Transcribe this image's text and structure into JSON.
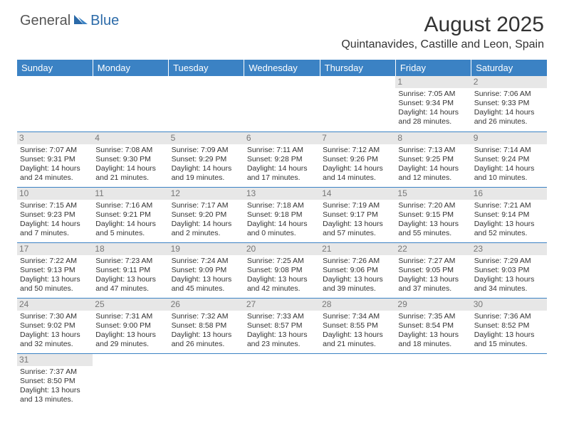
{
  "logo": {
    "general": "General",
    "blue": "Blue"
  },
  "title": "August 2025",
  "location": "Quintanavides, Castille and Leon, Spain",
  "colors": {
    "header_bg": "#3b82c4",
    "header_text": "#ffffff",
    "daynum_bg": "#e7e7e7",
    "daynum_text": "#777777",
    "border": "#3b82c4",
    "logo_accent": "#2b6aa8"
  },
  "day_headers": [
    "Sunday",
    "Monday",
    "Tuesday",
    "Wednesday",
    "Thursday",
    "Friday",
    "Saturday"
  ],
  "weeks": [
    [
      null,
      null,
      null,
      null,
      null,
      {
        "n": "1",
        "sr": "Sunrise: 7:05 AM",
        "ss": "Sunset: 9:34 PM",
        "d1": "Daylight: 14 hours",
        "d2": "and 28 minutes."
      },
      {
        "n": "2",
        "sr": "Sunrise: 7:06 AM",
        "ss": "Sunset: 9:33 PM",
        "d1": "Daylight: 14 hours",
        "d2": "and 26 minutes."
      }
    ],
    [
      {
        "n": "3",
        "sr": "Sunrise: 7:07 AM",
        "ss": "Sunset: 9:31 PM",
        "d1": "Daylight: 14 hours",
        "d2": "and 24 minutes."
      },
      {
        "n": "4",
        "sr": "Sunrise: 7:08 AM",
        "ss": "Sunset: 9:30 PM",
        "d1": "Daylight: 14 hours",
        "d2": "and 21 minutes."
      },
      {
        "n": "5",
        "sr": "Sunrise: 7:09 AM",
        "ss": "Sunset: 9:29 PM",
        "d1": "Daylight: 14 hours",
        "d2": "and 19 minutes."
      },
      {
        "n": "6",
        "sr": "Sunrise: 7:11 AM",
        "ss": "Sunset: 9:28 PM",
        "d1": "Daylight: 14 hours",
        "d2": "and 17 minutes."
      },
      {
        "n": "7",
        "sr": "Sunrise: 7:12 AM",
        "ss": "Sunset: 9:26 PM",
        "d1": "Daylight: 14 hours",
        "d2": "and 14 minutes."
      },
      {
        "n": "8",
        "sr": "Sunrise: 7:13 AM",
        "ss": "Sunset: 9:25 PM",
        "d1": "Daylight: 14 hours",
        "d2": "and 12 minutes."
      },
      {
        "n": "9",
        "sr": "Sunrise: 7:14 AM",
        "ss": "Sunset: 9:24 PM",
        "d1": "Daylight: 14 hours",
        "d2": "and 10 minutes."
      }
    ],
    [
      {
        "n": "10",
        "sr": "Sunrise: 7:15 AM",
        "ss": "Sunset: 9:23 PM",
        "d1": "Daylight: 14 hours",
        "d2": "and 7 minutes."
      },
      {
        "n": "11",
        "sr": "Sunrise: 7:16 AM",
        "ss": "Sunset: 9:21 PM",
        "d1": "Daylight: 14 hours",
        "d2": "and 5 minutes."
      },
      {
        "n": "12",
        "sr": "Sunrise: 7:17 AM",
        "ss": "Sunset: 9:20 PM",
        "d1": "Daylight: 14 hours",
        "d2": "and 2 minutes."
      },
      {
        "n": "13",
        "sr": "Sunrise: 7:18 AM",
        "ss": "Sunset: 9:18 PM",
        "d1": "Daylight: 14 hours",
        "d2": "and 0 minutes."
      },
      {
        "n": "14",
        "sr": "Sunrise: 7:19 AM",
        "ss": "Sunset: 9:17 PM",
        "d1": "Daylight: 13 hours",
        "d2": "and 57 minutes."
      },
      {
        "n": "15",
        "sr": "Sunrise: 7:20 AM",
        "ss": "Sunset: 9:15 PM",
        "d1": "Daylight: 13 hours",
        "d2": "and 55 minutes."
      },
      {
        "n": "16",
        "sr": "Sunrise: 7:21 AM",
        "ss": "Sunset: 9:14 PM",
        "d1": "Daylight: 13 hours",
        "d2": "and 52 minutes."
      }
    ],
    [
      {
        "n": "17",
        "sr": "Sunrise: 7:22 AM",
        "ss": "Sunset: 9:13 PM",
        "d1": "Daylight: 13 hours",
        "d2": "and 50 minutes."
      },
      {
        "n": "18",
        "sr": "Sunrise: 7:23 AM",
        "ss": "Sunset: 9:11 PM",
        "d1": "Daylight: 13 hours",
        "d2": "and 47 minutes."
      },
      {
        "n": "19",
        "sr": "Sunrise: 7:24 AM",
        "ss": "Sunset: 9:09 PM",
        "d1": "Daylight: 13 hours",
        "d2": "and 45 minutes."
      },
      {
        "n": "20",
        "sr": "Sunrise: 7:25 AM",
        "ss": "Sunset: 9:08 PM",
        "d1": "Daylight: 13 hours",
        "d2": "and 42 minutes."
      },
      {
        "n": "21",
        "sr": "Sunrise: 7:26 AM",
        "ss": "Sunset: 9:06 PM",
        "d1": "Daylight: 13 hours",
        "d2": "and 39 minutes."
      },
      {
        "n": "22",
        "sr": "Sunrise: 7:27 AM",
        "ss": "Sunset: 9:05 PM",
        "d1": "Daylight: 13 hours",
        "d2": "and 37 minutes."
      },
      {
        "n": "23",
        "sr": "Sunrise: 7:29 AM",
        "ss": "Sunset: 9:03 PM",
        "d1": "Daylight: 13 hours",
        "d2": "and 34 minutes."
      }
    ],
    [
      {
        "n": "24",
        "sr": "Sunrise: 7:30 AM",
        "ss": "Sunset: 9:02 PM",
        "d1": "Daylight: 13 hours",
        "d2": "and 32 minutes."
      },
      {
        "n": "25",
        "sr": "Sunrise: 7:31 AM",
        "ss": "Sunset: 9:00 PM",
        "d1": "Daylight: 13 hours",
        "d2": "and 29 minutes."
      },
      {
        "n": "26",
        "sr": "Sunrise: 7:32 AM",
        "ss": "Sunset: 8:58 PM",
        "d1": "Daylight: 13 hours",
        "d2": "and 26 minutes."
      },
      {
        "n": "27",
        "sr": "Sunrise: 7:33 AM",
        "ss": "Sunset: 8:57 PM",
        "d1": "Daylight: 13 hours",
        "d2": "and 23 minutes."
      },
      {
        "n": "28",
        "sr": "Sunrise: 7:34 AM",
        "ss": "Sunset: 8:55 PM",
        "d1": "Daylight: 13 hours",
        "d2": "and 21 minutes."
      },
      {
        "n": "29",
        "sr": "Sunrise: 7:35 AM",
        "ss": "Sunset: 8:54 PM",
        "d1": "Daylight: 13 hours",
        "d2": "and 18 minutes."
      },
      {
        "n": "30",
        "sr": "Sunrise: 7:36 AM",
        "ss": "Sunset: 8:52 PM",
        "d1": "Daylight: 13 hours",
        "d2": "and 15 minutes."
      }
    ],
    [
      {
        "n": "31",
        "sr": "Sunrise: 7:37 AM",
        "ss": "Sunset: 8:50 PM",
        "d1": "Daylight: 13 hours",
        "d2": "and 13 minutes."
      },
      null,
      null,
      null,
      null,
      null,
      null
    ]
  ]
}
